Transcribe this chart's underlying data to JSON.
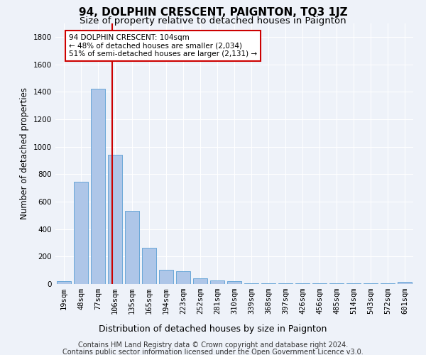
{
  "title": "94, DOLPHIN CRESCENT, PAIGNTON, TQ3 1JZ",
  "subtitle": "Size of property relative to detached houses in Paignton",
  "xlabel": "Distribution of detached houses by size in Paignton",
  "ylabel": "Number of detached properties",
  "footer_line1": "Contains HM Land Registry data © Crown copyright and database right 2024.",
  "footer_line2": "Contains public sector information licensed under the Open Government Licence v3.0.",
  "bar_labels": [
    "19sqm",
    "48sqm",
    "77sqm",
    "106sqm",
    "135sqm",
    "165sqm",
    "194sqm",
    "223sqm",
    "252sqm",
    "281sqm",
    "310sqm",
    "339sqm",
    "368sqm",
    "397sqm",
    "426sqm",
    "456sqm",
    "485sqm",
    "514sqm",
    "543sqm",
    "572sqm",
    "601sqm"
  ],
  "bar_values": [
    22,
    745,
    1420,
    940,
    530,
    265,
    105,
    93,
    40,
    28,
    20,
    5,
    5,
    5,
    5,
    5,
    5,
    5,
    5,
    5,
    14
  ],
  "bar_color": "#aec6e8",
  "bar_edgecolor": "#5a9fd4",
  "vline_color": "#cc0000",
  "annotation_text": "94 DOLPHIN CRESCENT: 104sqm\n← 48% of detached houses are smaller (2,034)\n51% of semi-detached houses are larger (2,131) →",
  "annotation_box_facecolor": "#ffffff",
  "annotation_box_edgecolor": "#cc0000",
  "ylim": [
    0,
    1900
  ],
  "yticks": [
    0,
    200,
    400,
    600,
    800,
    1000,
    1200,
    1400,
    1600,
    1800
  ],
  "background_color": "#eef2f9",
  "grid_color": "#ffffff",
  "title_fontsize": 11,
  "subtitle_fontsize": 9.5,
  "ylabel_fontsize": 8.5,
  "xlabel_fontsize": 9,
  "tick_fontsize": 7.5,
  "annotation_fontsize": 7.5,
  "footer_fontsize": 7
}
